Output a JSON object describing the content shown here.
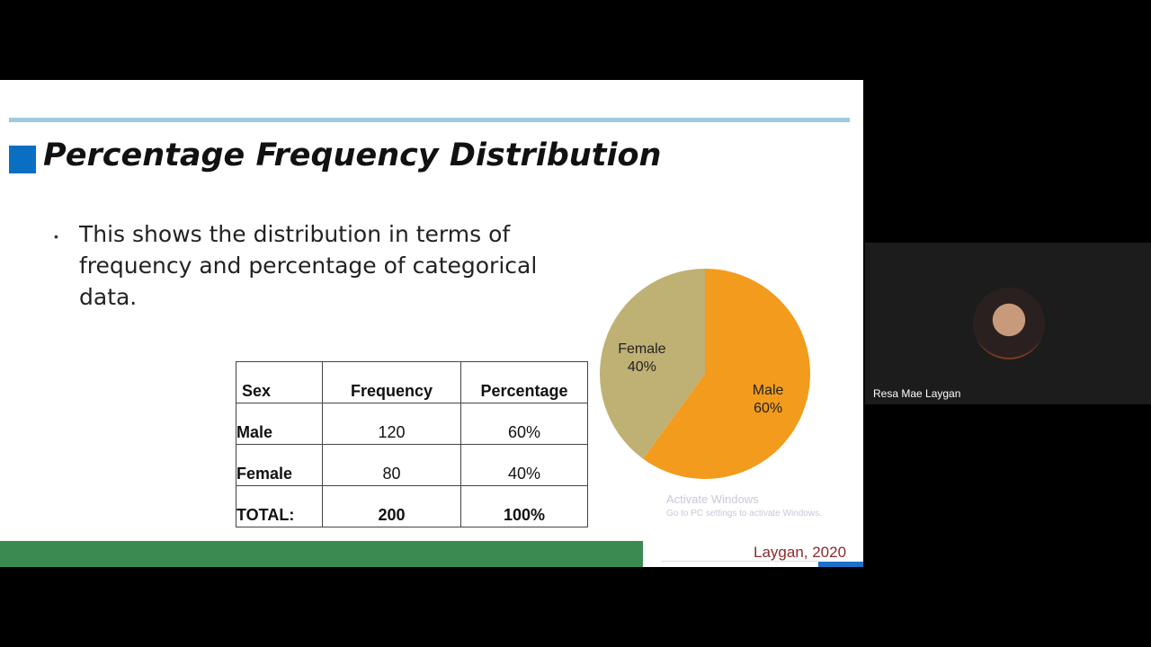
{
  "slide": {
    "title": "Percentage Frequency Distribution",
    "bullet": "This shows the distribution in terms of frequency and percentage of categorical data.",
    "table": {
      "header": [
        "Sex",
        "Frequency",
        "Percentage"
      ],
      "rows": [
        [
          "Male",
          "120",
          "60%"
        ],
        [
          "Female",
          "80",
          "40%"
        ],
        [
          "TOTAL:",
          "200",
          "100%"
        ]
      ]
    },
    "credit": "Laygan, 2020"
  },
  "chart_data": {
    "type": "pie",
    "categories": [
      "Male",
      "Female"
    ],
    "values": [
      60,
      40
    ],
    "value_labels": [
      "60%",
      "40%"
    ],
    "colors": [
      "#f29b1d",
      "#bfb074"
    ]
  },
  "watermark": {
    "title": "Activate Windows",
    "subtitle": "Go to PC settings to activate Windows."
  },
  "participant": {
    "name": "Resa Mae Laygan"
  }
}
